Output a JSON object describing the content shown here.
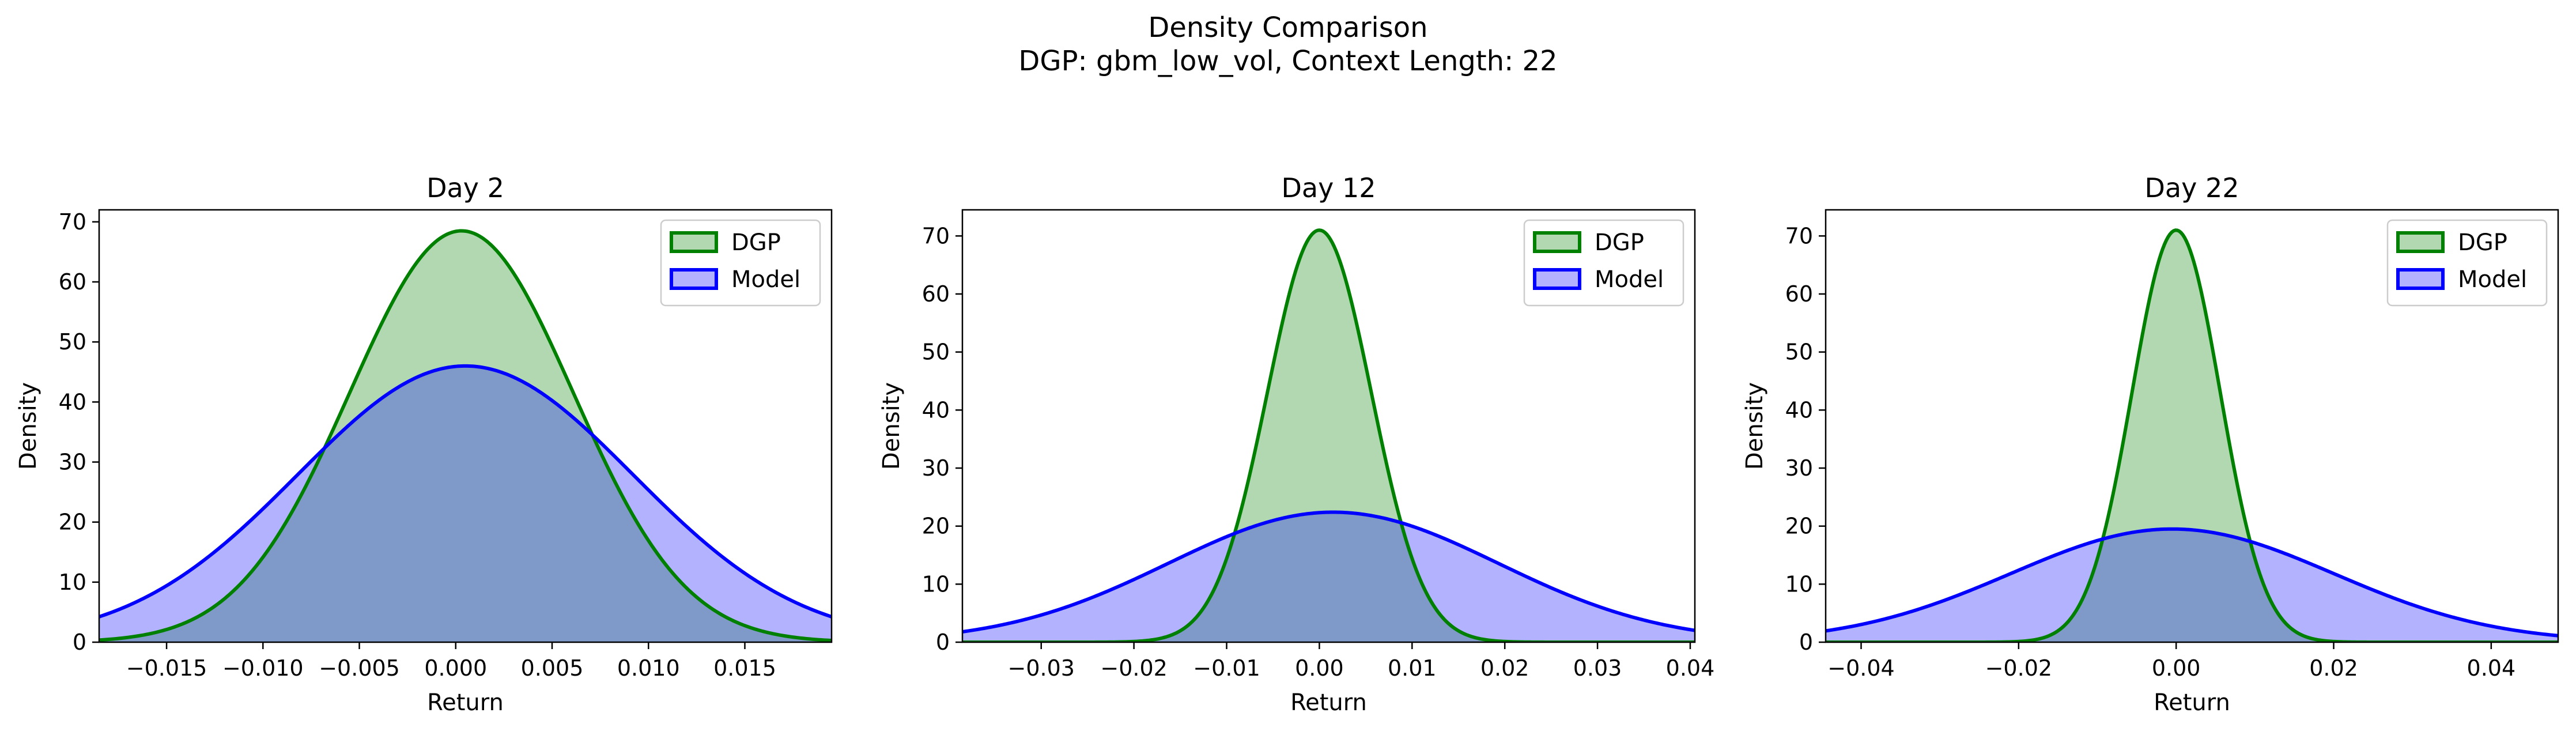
{
  "figure": {
    "title_line1": "Density Comparison",
    "title_line2": "DGP: gbm_low_vol, Context Length: 22"
  },
  "colors": {
    "dgp_line": "#008000",
    "dgp_fill": "#b2d8b2",
    "model_line": "#0000ff",
    "model_fill": "#b2b2ff",
    "overlap_fill": "#7f99c8"
  },
  "chart_data": [
    {
      "type": "area",
      "title": "Day 2",
      "xlabel": "Return",
      "ylabel": "Density",
      "xlim": [
        -0.0185,
        0.0195
      ],
      "ylim": [
        0,
        72
      ],
      "xticks": [
        -0.015,
        -0.01,
        -0.005,
        0.0,
        0.005,
        0.01,
        0.015
      ],
      "xtick_labels": [
        "−0.015",
        "−0.010",
        "−0.005",
        "0.000",
        "0.005",
        "0.010",
        "0.015"
      ],
      "yticks": [
        0,
        10,
        20,
        30,
        40,
        50,
        60,
        70
      ],
      "ytick_labels": [
        "0",
        "10",
        "20",
        "30",
        "40",
        "50",
        "60",
        "70"
      ],
      "legend": "top-right",
      "series": [
        {
          "name": "DGP",
          "distribution": "normal",
          "mean": 0.0003,
          "std": 0.0058,
          "peak": 68.5
        },
        {
          "name": "Model",
          "distribution": "normal",
          "mean": 0.0005,
          "std": 0.0087,
          "peak": 46.0
        }
      ]
    },
    {
      "type": "area",
      "title": "Day 12",
      "xlabel": "Return",
      "ylabel": "Density",
      "xlim": [
        -0.0385,
        0.0405
      ],
      "ylim": [
        0,
        74.5
      ],
      "xticks": [
        -0.03,
        -0.02,
        -0.01,
        0.0,
        0.01,
        0.02,
        0.03,
        0.04
      ],
      "xtick_labels": [
        "−0.03",
        "−0.02",
        "−0.01",
        "0.00",
        "0.01",
        "0.02",
        "0.03",
        "0.04"
      ],
      "yticks": [
        0,
        10,
        20,
        30,
        40,
        50,
        60,
        70
      ],
      "ytick_labels": [
        "0",
        "10",
        "20",
        "30",
        "40",
        "50",
        "60",
        "70"
      ],
      "legend": "top-right",
      "series": [
        {
          "name": "DGP",
          "distribution": "normal",
          "mean": 0.0,
          "std": 0.0056,
          "peak": 71.0
        },
        {
          "name": "Model",
          "distribution": "normal",
          "mean": 0.0015,
          "std": 0.0178,
          "peak": 22.4
        }
      ]
    },
    {
      "type": "area",
      "title": "Day 22",
      "xlabel": "Return",
      "ylabel": "Density",
      "xlim": [
        -0.0445,
        0.0485
      ],
      "ylim": [
        0,
        74.5
      ],
      "xticks": [
        -0.04,
        -0.02,
        0.0,
        0.02,
        0.04
      ],
      "xtick_labels": [
        "−0.04",
        "−0.02",
        "0.00",
        "0.02",
        "0.04"
      ],
      "yticks": [
        0,
        10,
        20,
        30,
        40,
        50,
        60,
        70
      ],
      "ytick_labels": [
        "0",
        "10",
        "20",
        "30",
        "40",
        "50",
        "60",
        "70"
      ],
      "legend": "top-right",
      "series": [
        {
          "name": "DGP",
          "distribution": "normal",
          "mean": 0.0,
          "std": 0.0056,
          "peak": 71.0
        },
        {
          "name": "Model",
          "distribution": "normal",
          "mean": -0.0005,
          "std": 0.0205,
          "peak": 19.5
        }
      ]
    }
  ]
}
